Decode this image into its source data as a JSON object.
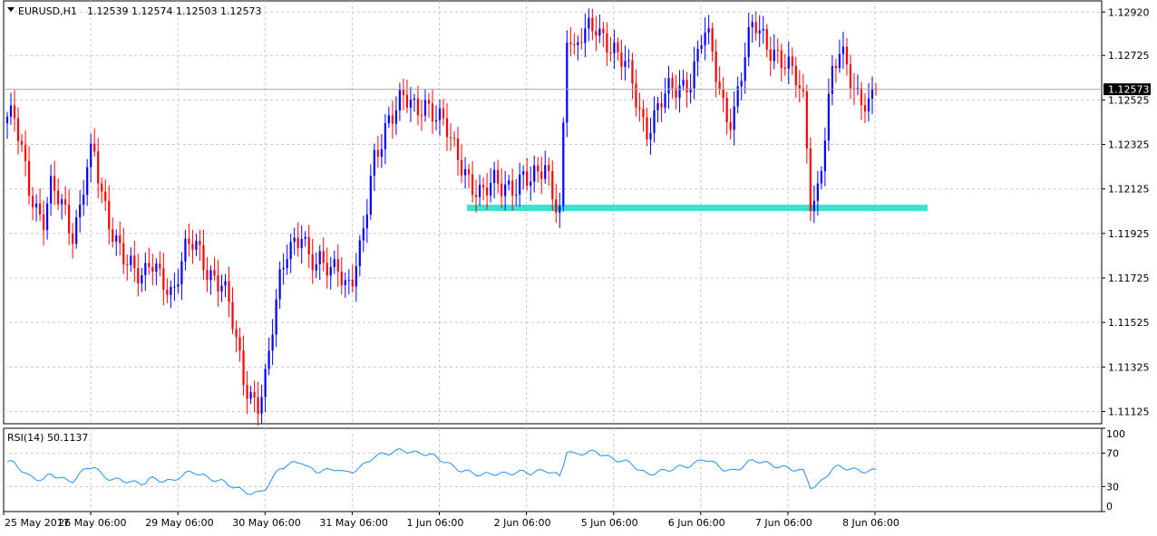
{
  "header": {
    "symbol_label": "EURUSD,H1",
    "ohlc": "1.12539 1.12574 1.12503 1.12573"
  },
  "rsi_panel": {
    "label": "RSI(14) 50.1137",
    "levels": [
      100,
      70,
      30,
      0
    ],
    "level_labels": [
      "100",
      "70",
      "30",
      "0"
    ]
  },
  "price_axis": {
    "ticks": [
      "1.12920",
      "1.12725",
      "1.12525",
      "1.12325",
      "1.12125",
      "1.11925",
      "1.11725",
      "1.11525",
      "1.11325",
      "1.11125"
    ],
    "tick_values": [
      1.1292,
      1.12725,
      1.12525,
      1.12325,
      1.12125,
      1.11925,
      1.11725,
      1.11525,
      1.11325,
      1.11125
    ],
    "current_price": "1.12573",
    "current_value": 1.12573
  },
  "time_axis": {
    "labels": [
      "25 May 2017",
      "26 May 06:00",
      "29 May 06:00",
      "30 May 06:00",
      "31 May 06:00",
      "1 Jun 06:00",
      "2 Jun 06:00",
      "5 Jun 06:00",
      "6 Jun 06:00",
      "7 Jun 06:00",
      "8 Jun 06:00"
    ]
  },
  "colors": {
    "bull": "#0000ff",
    "bear": "#ff0000",
    "support": "#40e0d0",
    "rsi_line": "#1e90ff",
    "grid": "#c8c8c8",
    "current_price_bg": "#000000"
  },
  "chart_data": {
    "type": "candlestick",
    "symbol": "EURUSD",
    "timeframe": "H1",
    "ylim": [
      1.1107,
      1.1297
    ],
    "grid": true,
    "support_level": 1.1204,
    "anchors": [
      1.1245,
      1.1243,
      1.1228,
      1.1213,
      1.1205,
      1.12,
      1.1214,
      1.1208,
      1.12,
      1.119,
      1.1203,
      1.1225,
      1.1232,
      1.121,
      1.1195,
      1.119,
      1.1186,
      1.1182,
      1.1175,
      1.117,
      1.1178,
      1.1175,
      1.1172,
      1.1166,
      1.1177,
      1.1185,
      1.1187,
      1.1182,
      1.1176,
      1.1174,
      1.117,
      1.1158,
      1.114,
      1.1125,
      1.112,
      1.1118,
      1.1128,
      1.115,
      1.117,
      1.1185,
      1.119,
      1.1195,
      1.1182,
      1.1176,
      1.1178,
      1.1175,
      1.1182,
      1.117,
      1.1172,
      1.118,
      1.12,
      1.1225,
      1.1235,
      1.1245,
      1.1248,
      1.1252,
      1.125,
      1.1247,
      1.1253,
      1.125,
      1.1245,
      1.124,
      1.123,
      1.1225,
      1.122,
      1.1215,
      1.121,
      1.1212,
      1.1214,
      1.1213,
      1.1215,
      1.1216,
      1.1219,
      1.1214,
      1.1218,
      1.1222,
      1.1212,
      1.1204,
      1.1285,
      1.127,
      1.128,
      1.1285,
      1.1288,
      1.1282,
      1.1276,
      1.127,
      1.1268,
      1.1262,
      1.125,
      1.124,
      1.1243,
      1.125,
      1.1255,
      1.1258,
      1.126,
      1.1262,
      1.127,
      1.1283,
      1.1275,
      1.126,
      1.1248,
      1.1245,
      1.126,
      1.1275,
      1.1286,
      1.1282,
      1.1278,
      1.1275,
      1.127,
      1.1265,
      1.126,
      1.125,
      1.1204,
      1.1215,
      1.124,
      1.1265,
      1.1272,
      1.1268,
      1.1258,
      1.1255,
      1.125,
      1.1257
    ],
    "wick": 0.0007,
    "rsi": {
      "name": "RSI(14)",
      "value": 50.1137,
      "ylim": [
        0,
        100
      ],
      "levels": [
        70,
        30
      ],
      "anchors": [
        60,
        58,
        50,
        42,
        40,
        38,
        45,
        42,
        38,
        36,
        44,
        52,
        55,
        45,
        40,
        38,
        38,
        36,
        34,
        34,
        40,
        38,
        37,
        36,
        42,
        46,
        48,
        44,
        40,
        38,
        36,
        32,
        28,
        24,
        22,
        22,
        28,
        40,
        52,
        56,
        58,
        60,
        52,
        48,
        50,
        49,
        52,
        46,
        48,
        52,
        58,
        66,
        68,
        70,
        72,
        74,
        72,
        70,
        70,
        68,
        64,
        60,
        54,
        50,
        48,
        46,
        44,
        45,
        46,
        45,
        46,
        47,
        48,
        46,
        48,
        50,
        46,
        42,
        74,
        68,
        70,
        71,
        72,
        68,
        64,
        62,
        60,
        58,
        50,
        45,
        46,
        48,
        50,
        52,
        54,
        55,
        58,
        64,
        60,
        55,
        50,
        48,
        52,
        58,
        62,
        60,
        57,
        55,
        53,
        52,
        50,
        48,
        28,
        32,
        42,
        52,
        54,
        52,
        50,
        49,
        48,
        50
      ]
    }
  }
}
